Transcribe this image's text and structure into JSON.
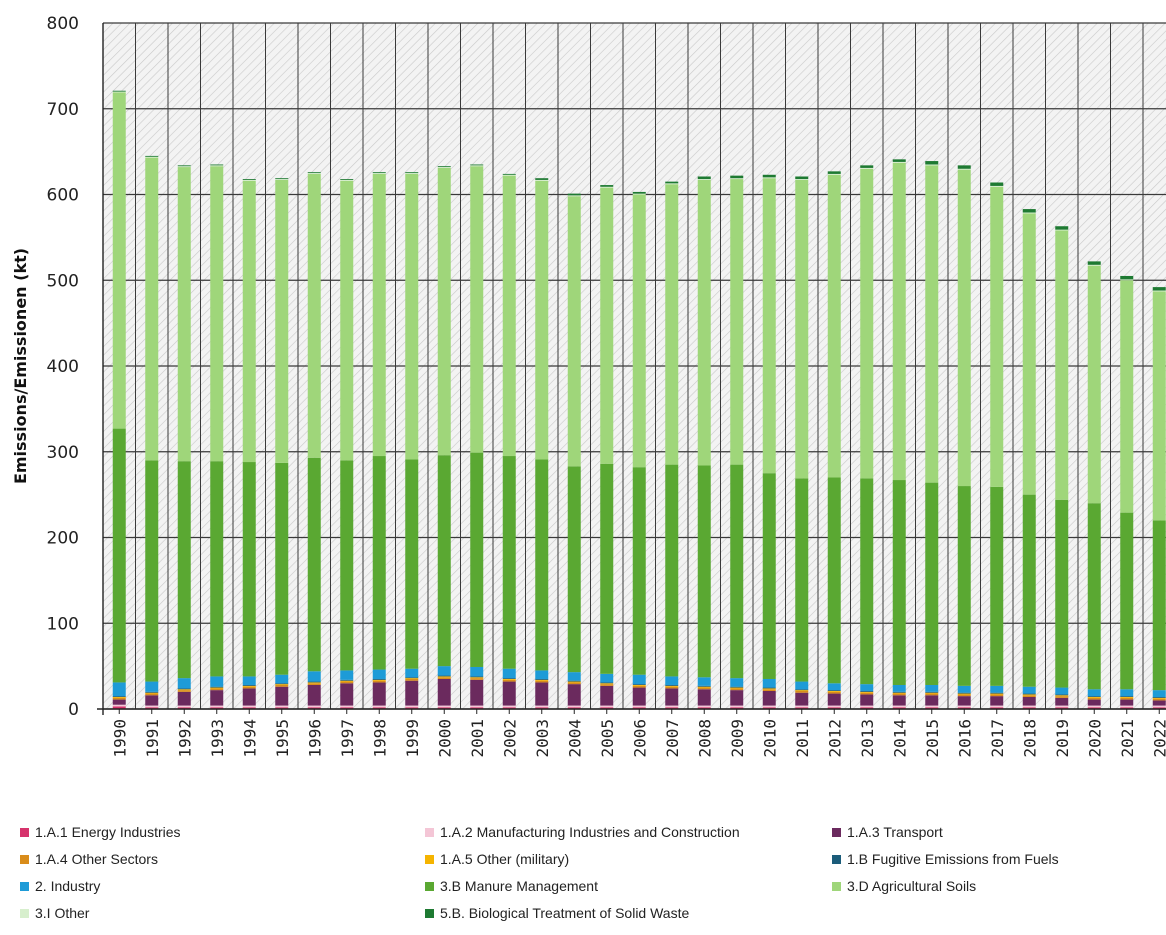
{
  "chart_data": {
    "type": "bar",
    "stacked": true,
    "ylabel": "Emissions/Emissionen (kt)",
    "xlabel": "",
    "ylim": [
      0,
      800
    ],
    "yticks": [
      0,
      100,
      200,
      300,
      400,
      500,
      600,
      700,
      800
    ],
    "grid": true,
    "legend_position": "bottom",
    "categories": [
      "1990",
      "1991",
      "1992",
      "1993",
      "1994",
      "1995",
      "1996",
      "1997",
      "1998",
      "1999",
      "2000",
      "2001",
      "2002",
      "2003",
      "2004",
      "2005",
      "2006",
      "2007",
      "2008",
      "2009",
      "2010",
      "2011",
      "2012",
      "2013",
      "2014",
      "2015",
      "2016",
      "2017",
      "2018",
      "2019",
      "2020",
      "2021",
      "2022"
    ],
    "series": [
      {
        "name": "1.A.1 Energy Industries",
        "color": "#d6336c",
        "values": [
          3,
          2,
          2,
          2,
          2,
          2,
          2,
          2,
          2,
          2,
          2,
          2,
          2,
          2,
          2,
          2,
          2,
          2,
          2,
          2,
          2,
          2,
          2,
          2,
          2,
          2,
          2,
          2,
          2,
          2,
          2,
          2,
          2
        ]
      },
      {
        "name": "1.A.2 Manufacturing Industries and Construction",
        "color": "#f4c6d6",
        "values": [
          2,
          2,
          2,
          2,
          2,
          2,
          2,
          2,
          2,
          2,
          2,
          2,
          2,
          2,
          2,
          2,
          2,
          2,
          2,
          2,
          2,
          2,
          2,
          2,
          2,
          2,
          2,
          2,
          2,
          2,
          2,
          2,
          2
        ]
      },
      {
        "name": "1.A.3 Transport",
        "color": "#6b2a5e",
        "values": [
          6,
          12,
          16,
          18,
          20,
          22,
          24,
          26,
          27,
          29,
          31,
          30,
          28,
          27,
          25,
          23,
          21,
          20,
          19,
          18,
          17,
          15,
          14,
          13,
          12,
          12,
          11,
          11,
          10,
          9,
          7,
          7,
          6
        ]
      },
      {
        "name": "1.A.4 Other Sectors",
        "color": "#d98c1a",
        "values": [
          2,
          2,
          2,
          2,
          2,
          2,
          2,
          2,
          2,
          2,
          2,
          2,
          2,
          2,
          2,
          2,
          2,
          2,
          2,
          2,
          2,
          2,
          2,
          2,
          2,
          2,
          2,
          2,
          2,
          2,
          2,
          2,
          2
        ]
      },
      {
        "name": "1.A.5 Other (military)",
        "color": "#f5b400",
        "values": [
          1,
          1,
          1,
          1,
          1,
          1,
          1,
          1,
          1,
          1,
          1,
          1,
          1,
          1,
          1,
          1,
          1,
          1,
          1,
          1,
          1,
          1,
          1,
          1,
          1,
          1,
          1,
          1,
          1,
          1,
          1,
          1,
          1
        ]
      },
      {
        "name": "1.B Fugitive Emissions from Fuels",
        "color": "#1b5c7a",
        "values": [
          1,
          1,
          1,
          1,
          1,
          1,
          1,
          1,
          1,
          1,
          1,
          1,
          1,
          1,
          1,
          1,
          1,
          1,
          1,
          1,
          1,
          1,
          1,
          1,
          1,
          1,
          1,
          1,
          1,
          1,
          1,
          1,
          1
        ]
      },
      {
        "name": "2. Industry",
        "color": "#1e9bd7",
        "values": [
          16,
          12,
          12,
          12,
          10,
          10,
          12,
          11,
          11,
          10,
          11,
          11,
          11,
          10,
          10,
          10,
          11,
          10,
          10,
          10,
          10,
          9,
          8,
          8,
          8,
          8,
          8,
          8,
          8,
          8,
          8,
          8,
          8
        ]
      },
      {
        "name": "3.B Manure Management",
        "color": "#5aa832",
        "values": [
          296,
          258,
          253,
          251,
          250,
          247,
          249,
          245,
          249,
          244,
          246,
          250,
          248,
          246,
          240,
          245,
          242,
          247,
          247,
          249,
          240,
          237,
          240,
          240,
          239,
          236,
          233,
          232,
          224,
          219,
          217,
          206,
          198
        ]
      },
      {
        "name": "3.D Agricultural Soils",
        "color": "#9fd67a",
        "values": [
          392,
          353,
          343,
          344,
          328,
          330,
          331,
          326,
          329,
          333,
          335,
          334,
          327,
          325,
          315,
          322,
          318,
          327,
          333,
          333,
          344,
          348,
          353,
          361,
          370,
          370,
          369,
          350,
          328,
          314,
          277,
          271,
          267
        ]
      },
      {
        "name": "3.I Other",
        "color": "#d7efcd",
        "values": [
          1,
          1,
          1,
          1,
          1,
          1,
          1,
          1,
          1,
          1,
          1,
          1,
          1,
          1,
          1,
          1,
          1,
          1,
          1,
          1,
          1,
          1,
          1,
          1,
          1,
          1,
          1,
          1,
          1,
          1,
          1,
          1,
          1
        ]
      },
      {
        "name": "5.B. Biological Treatment of Solid Waste",
        "color": "#1e7a32",
        "values": [
          1,
          1,
          1,
          1,
          1,
          1,
          1,
          1,
          1,
          1,
          1,
          1,
          1,
          2,
          2,
          2,
          2,
          2,
          3,
          3,
          3,
          3,
          3,
          3,
          3,
          4,
          4,
          4,
          4,
          4,
          4,
          4,
          4
        ]
      }
    ]
  }
}
